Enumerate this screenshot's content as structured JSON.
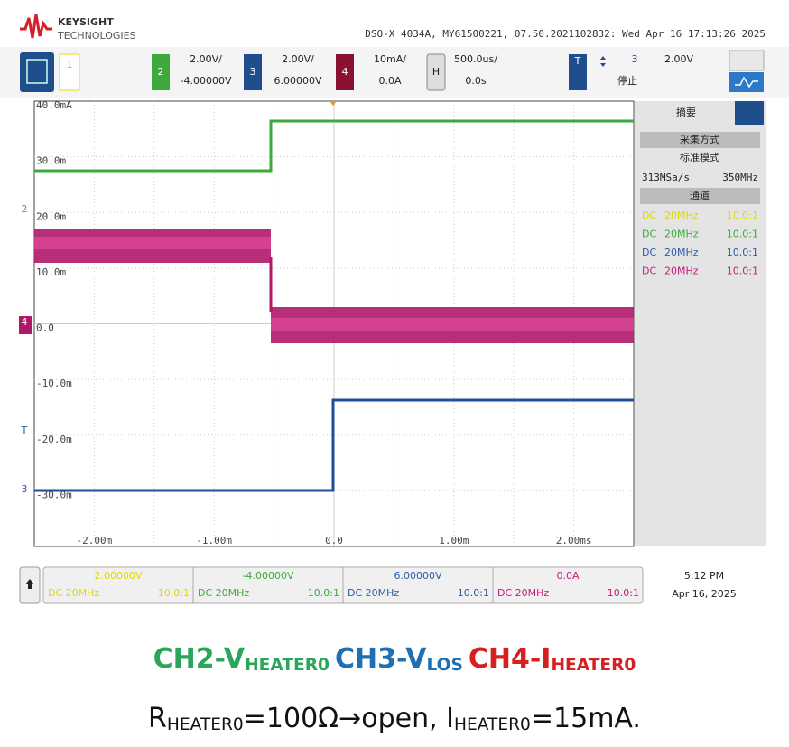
{
  "header": {
    "brand": "KEYSIGHT",
    "sub": "TECHNOLOGIES",
    "info": "DSO-X 4034A, MY61500221, 07.50.2021102832: Wed Apr 16 17:13:26 2025"
  },
  "channels": [
    {
      "label": "1"
    },
    {
      "label": "2",
      "scale": "2.00V/",
      "offset": "-4.00000V"
    },
    {
      "label": "3",
      "scale": "2.00V/",
      "offset": "6.00000V"
    },
    {
      "label": "4",
      "scale": "10mA/",
      "offset": "0.0A"
    }
  ],
  "horizontal": {
    "label": "H",
    "scale": "500.0us/",
    "delay": "0.0s"
  },
  "trigger": {
    "label": "T",
    "source": "3",
    "level": "2.00V",
    "status": "停止"
  },
  "plot": {
    "y_labels": [
      "40.0mA",
      "30.0m",
      "20.0m",
      "10.0m",
      "0.0",
      "-10.0m",
      "-20.0m",
      "-30.0m"
    ],
    "x_labels": [
      "-2.00m",
      "-1.00m",
      "0.0",
      "1.00m",
      "2.00ms"
    ],
    "markers": [
      "2",
      "4",
      "T",
      "3"
    ]
  },
  "side_panel": {
    "title": "摘要",
    "acq_header": "采集方式",
    "acq_mode": "标准模式",
    "sample_rate": "313MSa/s",
    "bandwidth": "350MHz",
    "ch_header": "通道",
    "rows": [
      {
        "coupling": "DC",
        "bw": "20MHz",
        "probe": "10.0:1"
      },
      {
        "coupling": "DC",
        "bw": "20MHz",
        "probe": "10.0:1"
      },
      {
        "coupling": "DC",
        "bw": "20MHz",
        "probe": "10.0:1"
      },
      {
        "coupling": "DC",
        "bw": "20MHz",
        "probe": "10.0:1"
      }
    ]
  },
  "bottom_bar": {
    "cells": [
      {
        "value": "2.00000V",
        "coupling": "DC 20MHz",
        "probe": "10.0:1"
      },
      {
        "value": "-4.00000V",
        "coupling": "DC 20MHz",
        "probe": "10.0:1"
      },
      {
        "value": "6.00000V",
        "coupling": "DC 20MHz",
        "probe": "10.0:1"
      },
      {
        "value": "0.0A",
        "coupling": "DC 20MHz",
        "probe": "10.0:1"
      }
    ],
    "time": "5:12 PM",
    "date": "Apr 16, 2025"
  },
  "caption": {
    "line1": [
      {
        "text": "CH2-V",
        "sub": "HEATER0"
      },
      {
        "text": "CH3-V",
        "sub": "LOS"
      },
      {
        "text": "CH4-I",
        "sub": "HEATER0"
      }
    ],
    "line2": [
      {
        "text": "R",
        "sub": "HEATER0"
      },
      {
        "text": "=100Ω→open, I",
        "sub": "HEATER0"
      },
      {
        "text": "=15mA."
      }
    ]
  }
}
